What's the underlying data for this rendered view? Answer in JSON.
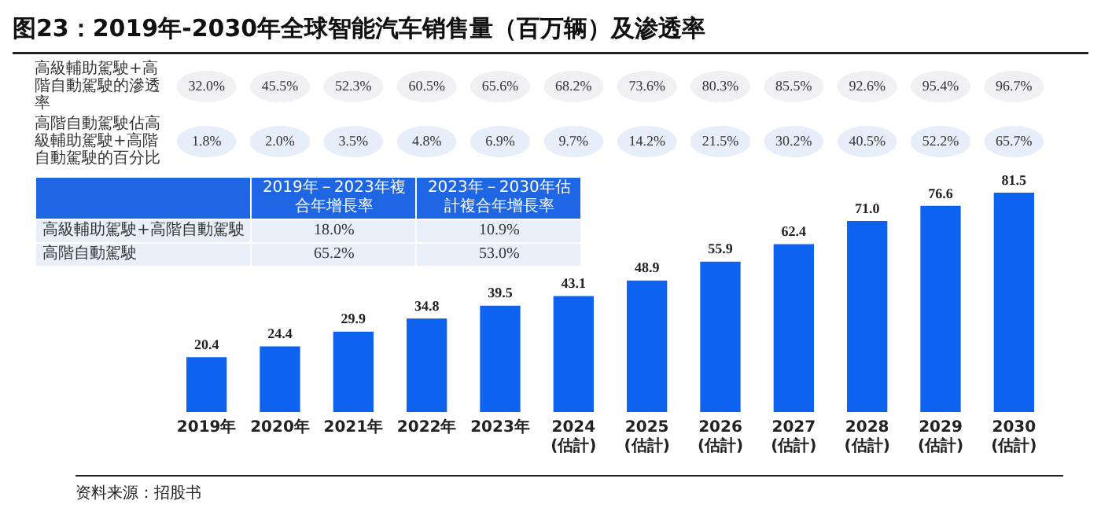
{
  "chart_data": {
    "type": "bar",
    "title": "图23：2019年-2030年全球智能汽车销售量（百万辆）及渗透率",
    "categories": [
      "2019年",
      "2020年",
      "2021年",
      "2022年",
      "2023年",
      "2024\n(估計)",
      "2025\n(估計)",
      "2026\n(估計)",
      "2027\n(估計)",
      "2028\n(估計)",
      "2029\n(估計)",
      "2030\n(估計)"
    ],
    "values": [
      20.4,
      24.4,
      29.9,
      34.8,
      39.5,
      43.1,
      48.9,
      55.9,
      62.4,
      71.0,
      76.6,
      81.5
    ],
    "color": "#0d63f0",
    "value_labels": [
      "20.4",
      "24.4",
      "29.9",
      "34.8",
      "39.5",
      "43.1",
      "48.9",
      "55.9",
      "62.4",
      "71.0",
      "76.6",
      "81.5"
    ],
    "grid": false,
    "legend": false,
    "annotations": [
      "高級輔助駕駛+高階自動駕駛的滲透率",
      "32.0%",
      "45.5%",
      "52.3%",
      "60.5%",
      "65.6%",
      "68.2%",
      "73.6%",
      "80.3%",
      "85.5%",
      "92.6%",
      "95.4%",
      "96.7%",
      "高階自動駕駛佔高級輔助駕駛+高階自動駕駛的百分比",
      "1.8%",
      "2.0%",
      "3.5%",
      "4.8%",
      "6.9%",
      "9.7%",
      "14.2%",
      "21.5%",
      "30.2%",
      "40.5%",
      "52.2%",
      "65.7%",
      "2019年－2023年複合年增長率",
      "2023年－2030年估計複合年增長率",
      "高級輔助駕駛+高階自動駕駛",
      "18.0%",
      "10.9%",
      "高階自動駕駛",
      "65.2%",
      "53.0%",
      "资料来源：招股书"
    ]
  }
}
